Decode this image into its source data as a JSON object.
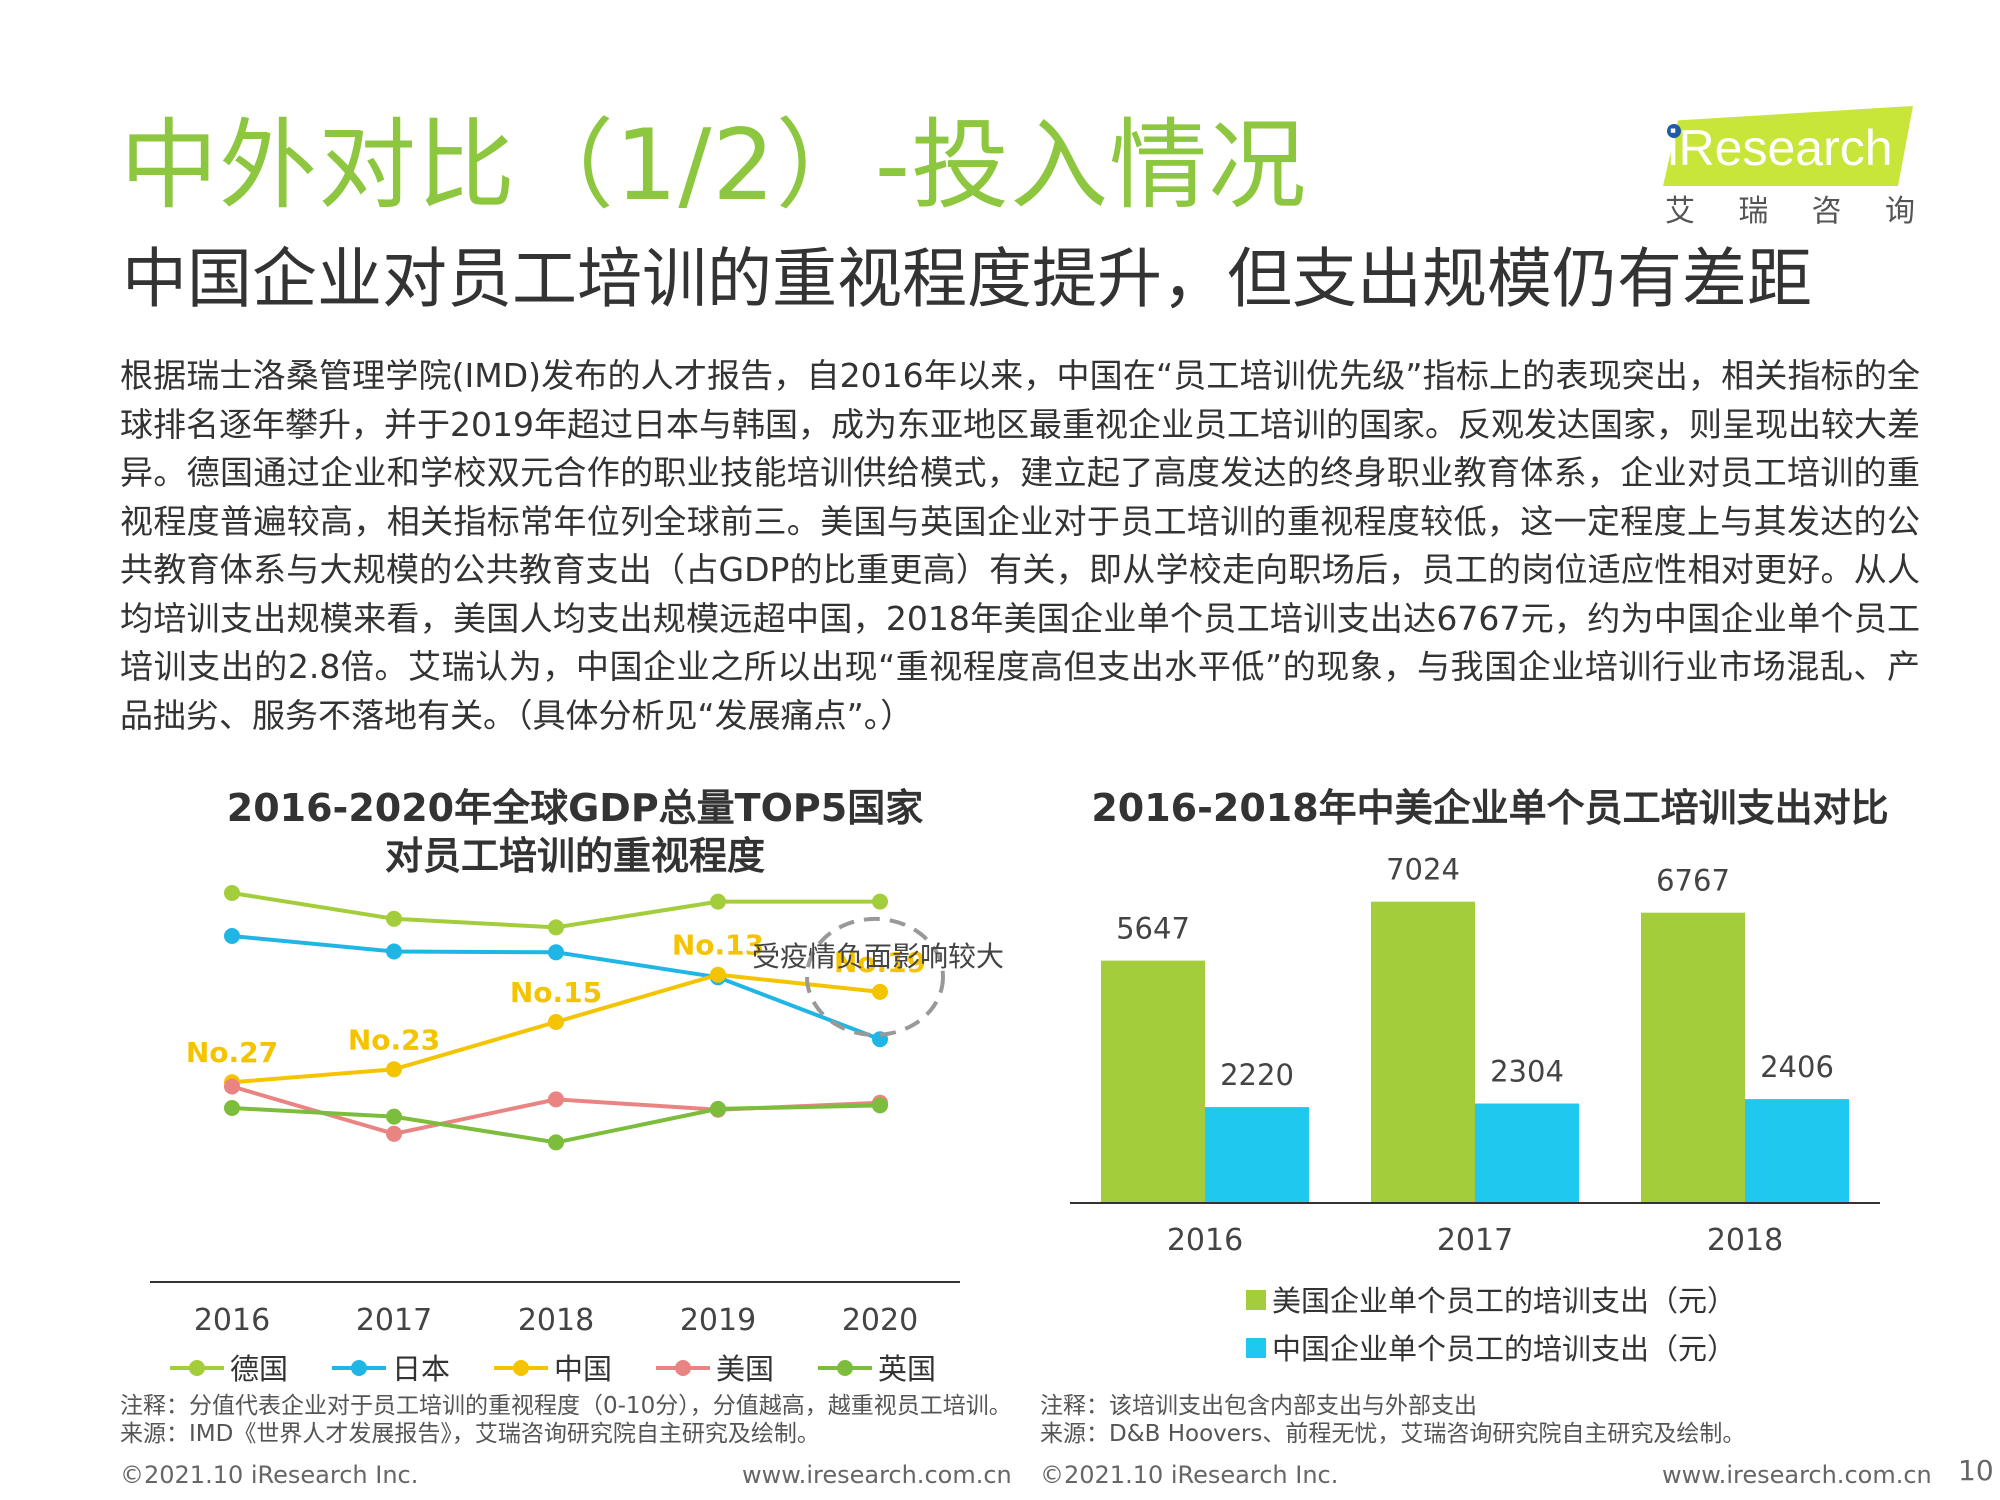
{
  "header": {
    "title": "中外对比（1/2）-投入情况",
    "subtitle": "中国企业对员工培训的重视程度提升，但支出规模仍有差距",
    "logo_text": "iResearch",
    "logo_cn": [
      "艾",
      "瑞",
      "咨",
      "询"
    ]
  },
  "body_text": "根据瑞士洛桑管理学院(IMD)发布的人才报告，自2016年以来，中国在“员工培训优先级”指标上的表现突出，相关指标的全球排名逐年攀升，并于2019年超过日本与韩国，成为东亚地区最重视企业员工培训的国家。反观发达国家，则呈现出较大差异。德国通过企业和学校双元合作的职业技能培训供给模式，建立起了高度发达的终身职业教育体系，企业对员工培训的重视程度普遍较高，相关指标常年位列全球前三。美国与英国企业对于员工培训的重视程度较低，这一定程度上与其发达的公共教育体系与大规模的公共教育支出（占GDP的比重更高）有关，即从学校走向职场后，员工的岗位适应性相对更好。从人均培训支出规模来看，美国人均支出规模远超中国，2018年美国企业单个员工培训支出达6767元，约为中国企业单个员工培训支出的2.8倍。艾瑞认为，中国企业之所以出现“重视程度高但支出水平低”的现象，与我国企业培训行业市场混乱、产品拙劣、服务不落地有关。（具体分析见“发展痛点”。）",
  "chart_data": [
    {
      "type": "line",
      "title_line1": "2016-2020年全球GDP总量TOP5国家",
      "title_line2": "对员工培训的重视程度",
      "x": [
        "2016",
        "2017",
        "2018",
        "2019",
        "2020"
      ],
      "ylim": [
        4,
        9
      ],
      "series": [
        {
          "name": "德国",
          "color": "#a3cd3a",
          "values": [
            8.5,
            8.2,
            8.1,
            8.4,
            8.4
          ]
        },
        {
          "name": "日本",
          "color": "#1fb6e6",
          "values": [
            8.0,
            7.82,
            7.81,
            7.52,
            6.8
          ]
        },
        {
          "name": "中国",
          "color": "#f5c400",
          "values": [
            6.3,
            6.45,
            7.0,
            7.55,
            7.35
          ],
          "labels": [
            "No.27",
            "No.23",
            "No.15",
            "No.13",
            "No.19"
          ]
        },
        {
          "name": "美国",
          "color": "#e98483",
          "values": [
            6.25,
            5.7,
            6.1,
            5.98,
            6.06
          ]
        },
        {
          "name": "英国",
          "color": "#7cbd3c",
          "values": [
            6.0,
            5.9,
            5.6,
            5.99,
            6.03
          ]
        }
      ],
      "annotation": "受疫情负面影响较大",
      "note": "注释：分值代表企业对于员工培训的重视程度（0-10分），分值越高，越重视员工培训。",
      "source": "来源：IMD《世界人才发展报告》，艾瑞咨询研究院自主研究及绘制。"
    },
    {
      "type": "bar",
      "title": "2016-2018年中美企业单个员工培训支出对比",
      "categories": [
        "2016",
        "2017",
        "2018"
      ],
      "ylim": [
        0,
        8000
      ],
      "series": [
        {
          "name": "美国企业单个员工的培训支出（元）",
          "color": "#a3cd3a",
          "values": [
            5647,
            7024,
            6767
          ]
        },
        {
          "name": "中国企业单个员工的培训支出（元）",
          "color": "#1fc8ee",
          "values": [
            2220,
            2304,
            2406
          ]
        }
      ],
      "note": "注释：该培训支出包含内部支出与外部支出",
      "source": "来源：D&B Hoovers、前程无忧，艾瑞咨询研究院自主研究及绘制。"
    }
  ],
  "footer": {
    "left_copyright": "©2021.10 iResearch Inc.",
    "left_url": "www.iresearch.com.cn",
    "right_copyright": "©2021.10 iResearch Inc.",
    "right_url": "www.iresearch.com.cn",
    "page_number": "10"
  }
}
